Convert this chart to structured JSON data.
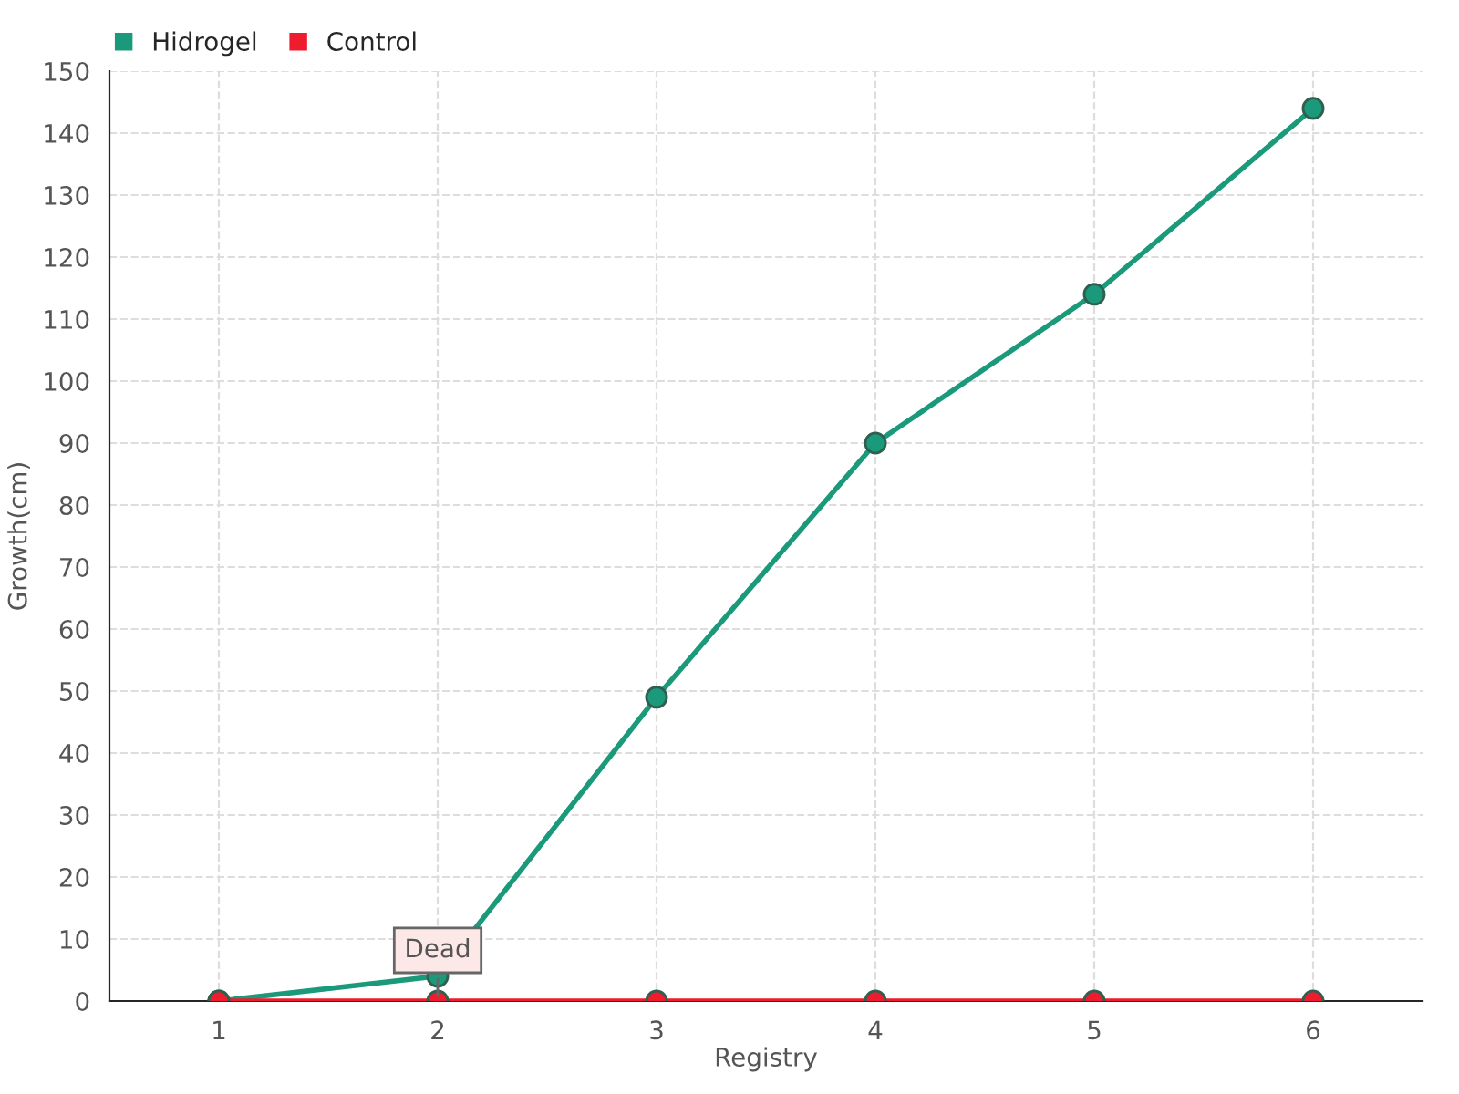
{
  "chart_data": {
    "type": "line",
    "xlabel": "Registry",
    "ylabel": "Growth(cm)",
    "categories": [
      "1",
      "2",
      "3",
      "4",
      "5",
      "6"
    ],
    "series": [
      {
        "name": "Hidrogel",
        "color": "#1a9a7a",
        "values": [
          0,
          4,
          49,
          90,
          114,
          144
        ]
      },
      {
        "name": "Control",
        "color": "#ee1c2e",
        "values": [
          0,
          0,
          0,
          0,
          0,
          0
        ]
      }
    ],
    "ylim": [
      0,
      150
    ],
    "yticks": [
      0,
      10,
      20,
      30,
      40,
      50,
      60,
      70,
      80,
      90,
      100,
      110,
      120,
      130,
      140,
      150
    ],
    "annotations": [
      {
        "text": "Dead",
        "x": "2",
        "y": 0
      }
    ],
    "grid": true,
    "legend": "top left",
    "marker": "circle",
    "line_style": "solid"
  }
}
